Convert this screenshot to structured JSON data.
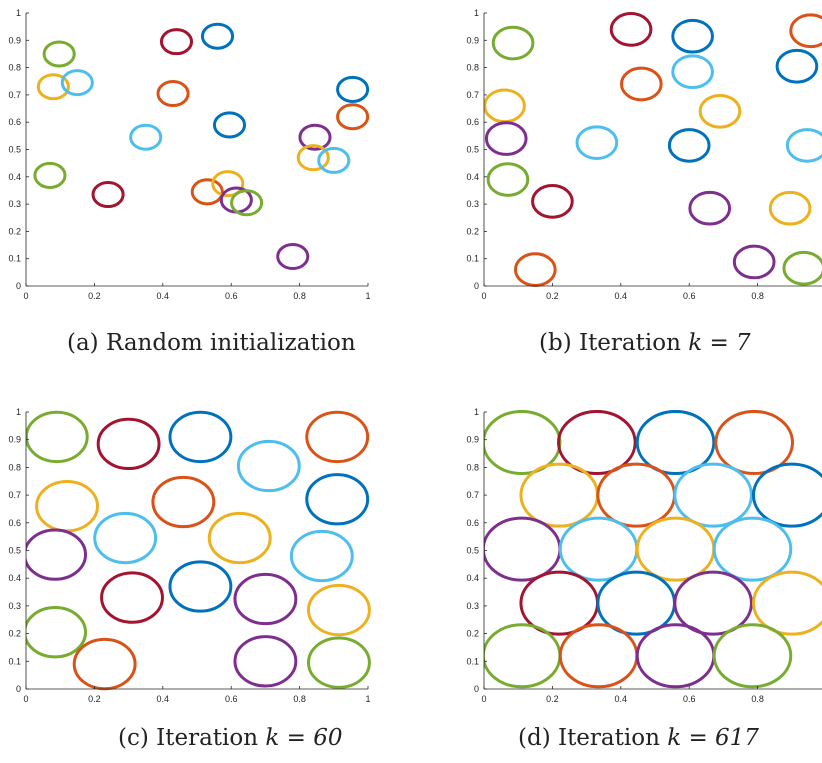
{
  "colors": {
    "blue": "#0072BD",
    "orange": "#D95319",
    "yellow": "#EDB120",
    "purple": "#7E2F8E",
    "green": "#77AC30",
    "cyan": "#4DBEEE",
    "darkred": "#A2142F"
  },
  "captions": [
    {
      "label": "(a) Random initialization",
      "math": ""
    },
    {
      "label": "(b) Iteration ",
      "math": "k = 7"
    },
    {
      "label": "(c) Iteration ",
      "math": "k = 60"
    },
    {
      "label": "(d) Iteration ",
      "math": "k = 617"
    }
  ],
  "chart_data": [
    {
      "type": "scatter",
      "title": "",
      "xlabel": "",
      "ylabel": "",
      "xlim": [
        0,
        1
      ],
      "ylim": [
        0,
        1
      ],
      "xticks": [
        "0",
        "0.2",
        "0.4",
        "0.6",
        "0.8",
        "1"
      ],
      "yticks": [
        "0",
        "0.1",
        "0.2",
        "0.3",
        "0.4",
        "0.5",
        "0.6",
        "0.7",
        "0.8",
        "0.9",
        "1"
      ],
      "radius": 0.044,
      "circles": [
        {
          "x": 0.097,
          "y": 0.85,
          "color": "green"
        },
        {
          "x": 0.08,
          "y": 0.73,
          "color": "yellow"
        },
        {
          "x": 0.15,
          "y": 0.745,
          "color": "cyan"
        },
        {
          "x": 0.44,
          "y": 0.895,
          "color": "darkred"
        },
        {
          "x": 0.56,
          "y": 0.915,
          "color": "blue"
        },
        {
          "x": 0.43,
          "y": 0.705,
          "color": "orange"
        },
        {
          "x": 0.35,
          "y": 0.545,
          "color": "cyan"
        },
        {
          "x": 0.595,
          "y": 0.59,
          "color": "blue"
        },
        {
          "x": 0.955,
          "y": 0.72,
          "color": "blue"
        },
        {
          "x": 0.955,
          "y": 0.62,
          "color": "orange"
        },
        {
          "x": 0.845,
          "y": 0.545,
          "color": "purple"
        },
        {
          "x": 0.84,
          "y": 0.47,
          "color": "yellow"
        },
        {
          "x": 0.9,
          "y": 0.46,
          "color": "cyan"
        },
        {
          "x": 0.07,
          "y": 0.405,
          "color": "green"
        },
        {
          "x": 0.24,
          "y": 0.335,
          "color": "darkred"
        },
        {
          "x": 0.53,
          "y": 0.345,
          "color": "orange"
        },
        {
          "x": 0.59,
          "y": 0.375,
          "color": "yellow"
        },
        {
          "x": 0.615,
          "y": 0.315,
          "color": "purple"
        },
        {
          "x": 0.645,
          "y": 0.305,
          "color": "green"
        },
        {
          "x": 0.78,
          "y": 0.108,
          "color": "purple"
        }
      ]
    },
    {
      "type": "scatter",
      "title": "",
      "xlabel": "",
      "ylabel": "",
      "xlim": [
        0,
        1
      ],
      "ylim": [
        0,
        1
      ],
      "xticks": [
        "0",
        "0.2",
        "0.4",
        "0.6",
        "0.8"
      ],
      "yticks": [
        "0",
        "0.1",
        "0.2",
        "0.3",
        "0.4",
        "0.5",
        "0.6",
        "0.7",
        "0.8",
        "0.9",
        "1"
      ],
      "radius": 0.058,
      "circles": [
        {
          "x": 0.085,
          "y": 0.89,
          "color": "green"
        },
        {
          "x": 0.43,
          "y": 0.94,
          "color": "darkred"
        },
        {
          "x": 0.61,
          "y": 0.915,
          "color": "blue"
        },
        {
          "x": 0.955,
          "y": 0.935,
          "color": "orange"
        },
        {
          "x": 0.61,
          "y": 0.785,
          "color": "cyan"
        },
        {
          "x": 0.46,
          "y": 0.74,
          "color": "orange"
        },
        {
          "x": 0.915,
          "y": 0.805,
          "color": "blue"
        },
        {
          "x": 0.06,
          "y": 0.66,
          "color": "yellow"
        },
        {
          "x": 0.69,
          "y": 0.64,
          "color": "yellow"
        },
        {
          "x": 0.065,
          "y": 0.54,
          "color": "purple"
        },
        {
          "x": 0.33,
          "y": 0.525,
          "color": "cyan"
        },
        {
          "x": 0.6,
          "y": 0.515,
          "color": "blue"
        },
        {
          "x": 0.945,
          "y": 0.515,
          "color": "cyan"
        },
        {
          "x": 0.07,
          "y": 0.39,
          "color": "green"
        },
        {
          "x": 0.2,
          "y": 0.31,
          "color": "darkred"
        },
        {
          "x": 0.66,
          "y": 0.285,
          "color": "purple"
        },
        {
          "x": 0.895,
          "y": 0.285,
          "color": "yellow"
        },
        {
          "x": 0.15,
          "y": 0.06,
          "color": "orange"
        },
        {
          "x": 0.79,
          "y": 0.088,
          "color": "purple"
        },
        {
          "x": 0.935,
          "y": 0.065,
          "color": "green"
        }
      ]
    },
    {
      "type": "scatter",
      "title": "",
      "xlabel": "",
      "ylabel": "",
      "xlim": [
        0,
        1
      ],
      "ylim": [
        0,
        1
      ],
      "xticks": [
        "0",
        "0.2",
        "0.4",
        "0.6",
        "0.8",
        "1"
      ],
      "yticks": [
        "0",
        "0.1",
        "0.2",
        "0.3",
        "0.4",
        "0.5",
        "0.6",
        "0.7",
        "0.8",
        "0.9",
        "1"
      ],
      "radius": 0.089,
      "circles": [
        {
          "x": 0.09,
          "y": 0.91,
          "color": "green"
        },
        {
          "x": 0.3,
          "y": 0.885,
          "color": "darkred"
        },
        {
          "x": 0.51,
          "y": 0.91,
          "color": "blue"
        },
        {
          "x": 0.91,
          "y": 0.91,
          "color": "orange"
        },
        {
          "x": 0.71,
          "y": 0.805,
          "color": "cyan"
        },
        {
          "x": 0.12,
          "y": 0.66,
          "color": "yellow"
        },
        {
          "x": 0.46,
          "y": 0.675,
          "color": "orange"
        },
        {
          "x": 0.91,
          "y": 0.685,
          "color": "blue"
        },
        {
          "x": 0.29,
          "y": 0.545,
          "color": "cyan"
        },
        {
          "x": 0.625,
          "y": 0.545,
          "color": "yellow"
        },
        {
          "x": 0.865,
          "y": 0.48,
          "color": "cyan"
        },
        {
          "x": 0.085,
          "y": 0.485,
          "color": "purple"
        },
        {
          "x": 0.51,
          "y": 0.37,
          "color": "blue"
        },
        {
          "x": 0.31,
          "y": 0.33,
          "color": "darkred"
        },
        {
          "x": 0.7,
          "y": 0.325,
          "color": "purple"
        },
        {
          "x": 0.915,
          "y": 0.285,
          "color": "yellow"
        },
        {
          "x": 0.085,
          "y": 0.205,
          "color": "green"
        },
        {
          "x": 0.23,
          "y": 0.09,
          "color": "orange"
        },
        {
          "x": 0.7,
          "y": 0.1,
          "color": "purple"
        },
        {
          "x": 0.915,
          "y": 0.095,
          "color": "green"
        }
      ]
    },
    {
      "type": "scatter",
      "title": "",
      "xlabel": "",
      "ylabel": "",
      "xlim": [
        0,
        1
      ],
      "ylim": [
        0,
        1
      ],
      "xticks": [
        "0",
        "0.2",
        "0.4",
        "0.6",
        "0.8"
      ],
      "yticks": [
        "0",
        "0.1",
        "0.2",
        "0.3",
        "0.4",
        "0.5",
        "0.6",
        "0.7",
        "0.8",
        "0.9",
        "1"
      ],
      "radius": 0.112,
      "circles": [
        {
          "x": 0.11,
          "y": 0.89,
          "color": "green"
        },
        {
          "x": 0.33,
          "y": 0.89,
          "color": "darkred"
        },
        {
          "x": 0.56,
          "y": 0.89,
          "color": "blue"
        },
        {
          "x": 0.79,
          "y": 0.89,
          "color": "orange"
        },
        {
          "x": 0.22,
          "y": 0.7,
          "color": "yellow"
        },
        {
          "x": 0.445,
          "y": 0.7,
          "color": "orange"
        },
        {
          "x": 0.67,
          "y": 0.7,
          "color": "cyan"
        },
        {
          "x": 0.9,
          "y": 0.7,
          "color": "blue"
        },
        {
          "x": 0.11,
          "y": 0.505,
          "color": "purple"
        },
        {
          "x": 0.335,
          "y": 0.505,
          "color": "cyan"
        },
        {
          "x": 0.56,
          "y": 0.505,
          "color": "yellow"
        },
        {
          "x": 0.785,
          "y": 0.505,
          "color": "cyan"
        },
        {
          "x": 0.22,
          "y": 0.31,
          "color": "darkred"
        },
        {
          "x": 0.445,
          "y": 0.31,
          "color": "blue"
        },
        {
          "x": 0.67,
          "y": 0.31,
          "color": "purple"
        },
        {
          "x": 0.9,
          "y": 0.31,
          "color": "yellow"
        },
        {
          "x": 0.11,
          "y": 0.12,
          "color": "green"
        },
        {
          "x": 0.335,
          "y": 0.12,
          "color": "orange"
        },
        {
          "x": 0.56,
          "y": 0.12,
          "color": "purple"
        },
        {
          "x": 0.785,
          "y": 0.12,
          "color": "green"
        }
      ]
    }
  ]
}
